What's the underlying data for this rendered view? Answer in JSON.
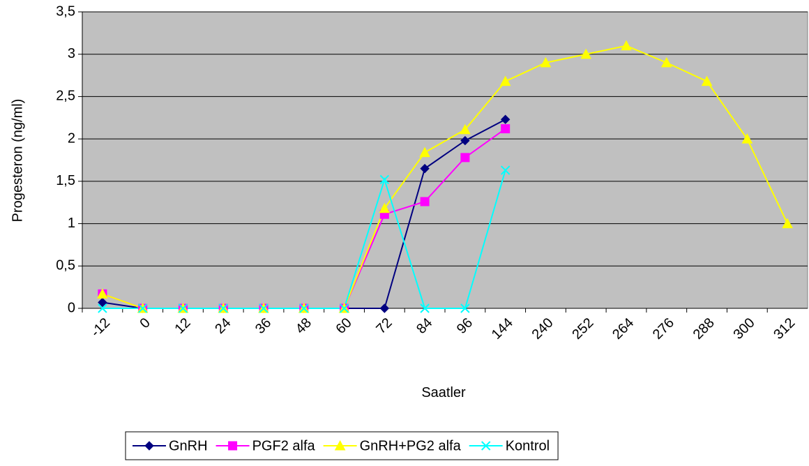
{
  "chart_data": {
    "type": "line",
    "x_label": "Saatler",
    "y_label": "Progesteron (ng/ml)",
    "categories": [
      "-12",
      "0",
      "12",
      "24",
      "36",
      "48",
      "60",
      "72",
      "84",
      "96",
      "144",
      "240",
      "252",
      "264",
      "276",
      "288",
      "300",
      "312"
    ],
    "series": [
      {
        "name": "GnRH",
        "color": "#000080",
        "marker": "diamond",
        "values": [
          0.07,
          0,
          0,
          0,
          0,
          0,
          0,
          0,
          1.65,
          1.98,
          2.23,
          null,
          null,
          null,
          null,
          null,
          null,
          null
        ]
      },
      {
        "name": "PGF2 alfa",
        "color": "#ff00ff",
        "marker": "square",
        "values": [
          0.17,
          0,
          0,
          0,
          0,
          0,
          0,
          1.11,
          1.26,
          1.78,
          2.12,
          null,
          null,
          null,
          null,
          null,
          null,
          null
        ]
      },
      {
        "name": "GnRH+PG2 alfa",
        "color": "#ffff00",
        "marker": "triangle",
        "values": [
          0.17,
          0,
          0,
          0,
          0,
          0,
          0,
          1.18,
          1.84,
          2.11,
          2.68,
          2.9,
          3.0,
          3.1,
          2.9,
          2.68,
          2.0,
          1.0
        ]
      },
      {
        "name": "Kontrol",
        "color": "#00ffff",
        "marker": "x",
        "values": [
          0,
          0,
          0,
          0,
          0,
          0,
          0,
          1.52,
          0,
          0,
          1.63,
          null,
          null,
          null,
          null,
          null,
          null,
          null
        ]
      }
    ],
    "ylim": [
      0,
      3.5
    ],
    "yticks": [
      0,
      {
        "value": 0.5,
        "label": "0,5"
      },
      1,
      {
        "value": 1.5,
        "label": "1,5"
      },
      2,
      {
        "value": 2.5,
        "label": "2,5"
      },
      3,
      {
        "value": 3.5,
        "label": "3,5"
      }
    ],
    "grid": true,
    "legend": "bottom"
  }
}
